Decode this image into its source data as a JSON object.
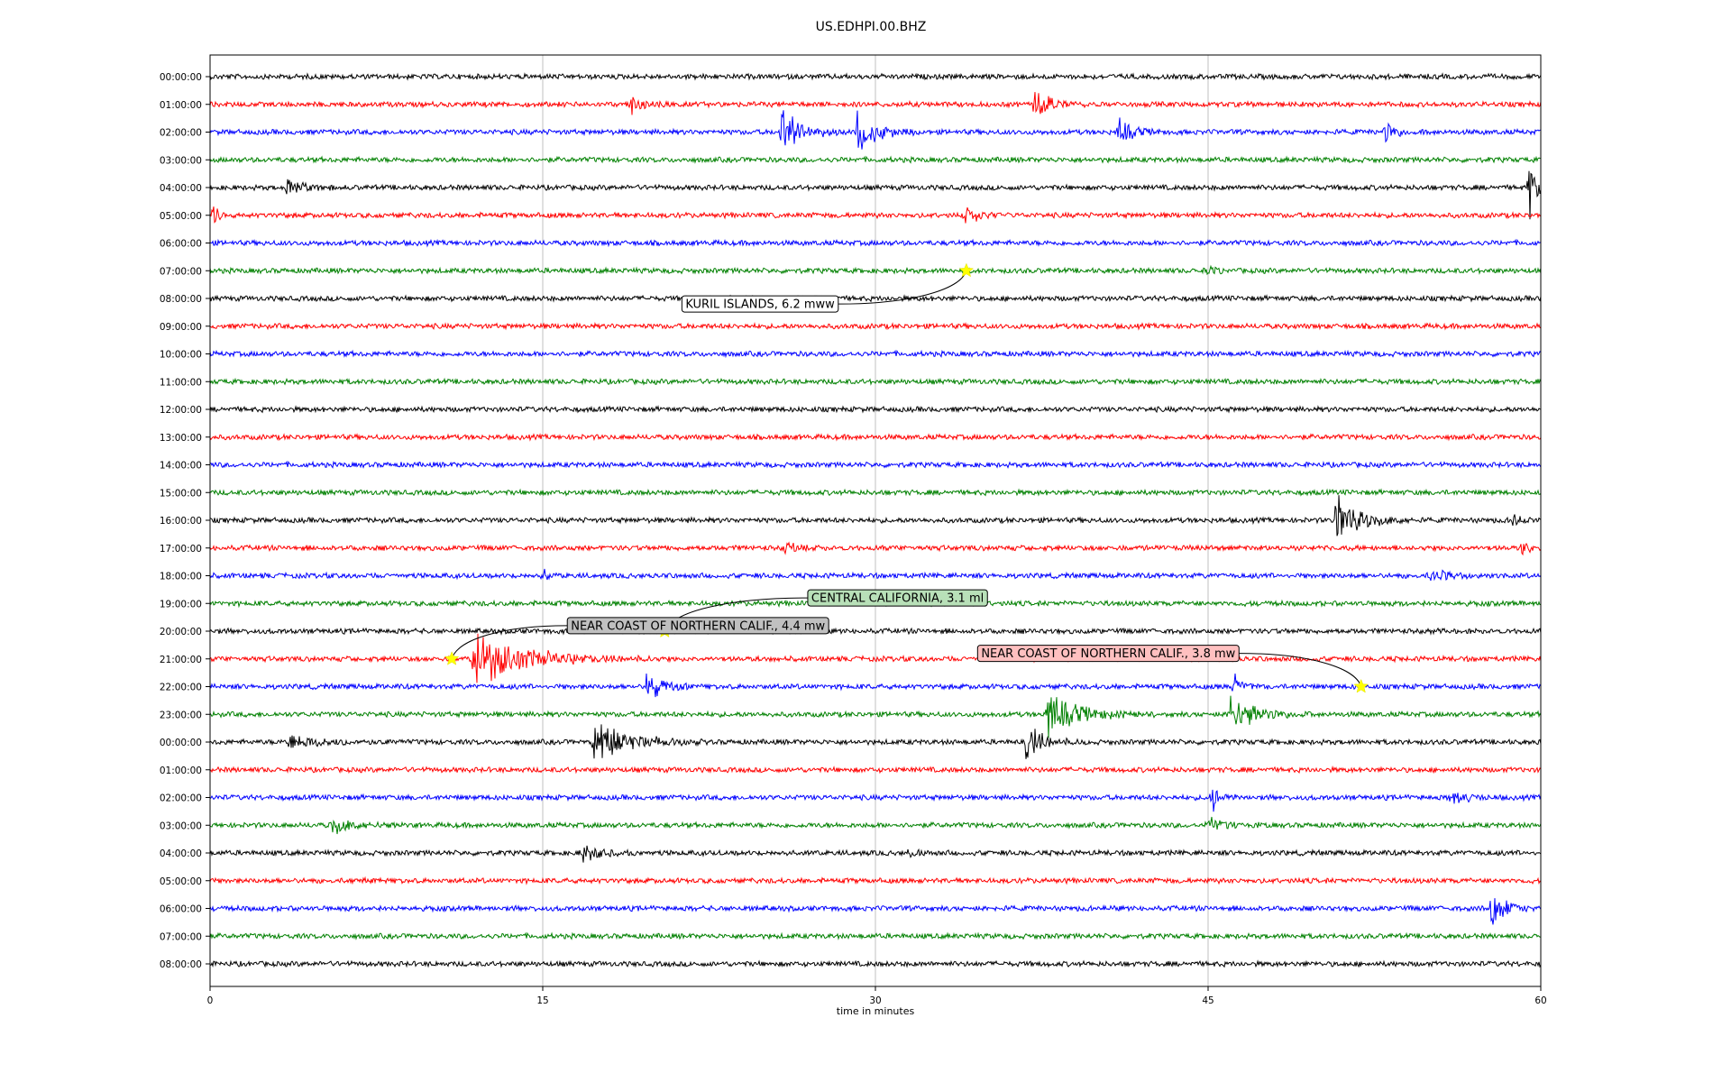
{
  "chart_data": {
    "type": "line",
    "title": "US.EDHPI.00.BHZ",
    "xlabel": "time in minutes",
    "ylabel": "",
    "xlim": [
      0,
      60
    ],
    "xticks": [
      "0",
      "15",
      "30",
      "45",
      "60"
    ],
    "xtick_values": [
      0,
      15,
      30,
      45,
      60
    ],
    "grid": "vertical lines at x ticks",
    "rows": [
      "00:00:00",
      "01:00:00",
      "02:00:00",
      "03:00:00",
      "04:00:00",
      "05:00:00",
      "06:00:00",
      "07:00:00",
      "08:00:00",
      "09:00:00",
      "10:00:00",
      "11:00:00",
      "12:00:00",
      "13:00:00",
      "14:00:00",
      "15:00:00",
      "16:00:00",
      "17:00:00",
      "18:00:00",
      "19:00:00",
      "20:00:00",
      "21:00:00",
      "22:00:00",
      "23:00:00",
      "00:00:00",
      "01:00:00",
      "02:00:00",
      "03:00:00",
      "04:00:00",
      "05:00:00",
      "06:00:00",
      "07:00:00",
      "08:00:00"
    ],
    "row_colors": [
      "#000000",
      "#ff0000",
      "#0000ff",
      "#008000"
    ],
    "bursts": [
      {
        "row": 1,
        "t": 19.0,
        "amp": 0.7,
        "dur": 1.0
      },
      {
        "row": 1,
        "t": 37.2,
        "amp": 1.0,
        "dur": 1.5
      },
      {
        "row": 2,
        "t": 25.8,
        "amp": 2.4,
        "dur": 1.5
      },
      {
        "row": 2,
        "t": 29.2,
        "amp": 1.8,
        "dur": 1.6
      },
      {
        "row": 2,
        "t": 41.0,
        "amp": 1.0,
        "dur": 1.2
      },
      {
        "row": 2,
        "t": 53.0,
        "amp": 0.9,
        "dur": 0.8
      },
      {
        "row": 4,
        "t": 3.5,
        "amp": 0.6,
        "dur": 1.5
      },
      {
        "row": 4,
        "t": 59.5,
        "amp": 2.0,
        "dur": 0.8
      },
      {
        "row": 5,
        "t": 0.2,
        "amp": 1.2,
        "dur": 0.3
      },
      {
        "row": 5,
        "t": 34.0,
        "amp": 0.8,
        "dur": 1.2
      },
      {
        "row": 7,
        "t": 45.0,
        "amp": 0.4,
        "dur": 0.5
      },
      {
        "row": 16,
        "t": 50.8,
        "amp": 2.0,
        "dur": 2.0
      },
      {
        "row": 16,
        "t": 58.8,
        "amp": 0.5,
        "dur": 0.5
      },
      {
        "row": 17,
        "t": 26.0,
        "amp": 0.5,
        "dur": 0.8
      },
      {
        "row": 17,
        "t": 59.2,
        "amp": 0.6,
        "dur": 0.6
      },
      {
        "row": 18,
        "t": 15.0,
        "amp": 0.5,
        "dur": 0.6
      },
      {
        "row": 18,
        "t": 55.0,
        "amp": 0.4,
        "dur": 2.0
      },
      {
        "row": 21,
        "t": 11.9,
        "amp": 2.2,
        "dur": 4.5
      },
      {
        "row": 22,
        "t": 19.7,
        "amp": 1.2,
        "dur": 1.4
      },
      {
        "row": 22,
        "t": 46.2,
        "amp": 0.8,
        "dur": 0.8
      },
      {
        "row": 23,
        "t": 37.8,
        "amp": 1.6,
        "dur": 2.8
      },
      {
        "row": 23,
        "t": 46.0,
        "amp": 1.8,
        "dur": 2.0
      },
      {
        "row": 24,
        "t": 17.3,
        "amp": 1.9,
        "dur": 2.8
      },
      {
        "row": 24,
        "t": 36.8,
        "amp": 1.6,
        "dur": 1.4
      },
      {
        "row": 24,
        "t": 3.5,
        "amp": 0.5,
        "dur": 3.0
      },
      {
        "row": 26,
        "t": 45.2,
        "amp": 1.0,
        "dur": 0.8
      },
      {
        "row": 26,
        "t": 56.0,
        "amp": 0.6,
        "dur": 1.2
      },
      {
        "row": 27,
        "t": 5.5,
        "amp": 0.6,
        "dur": 2.0
      },
      {
        "row": 27,
        "t": 45.0,
        "amp": 0.6,
        "dur": 1.5
      },
      {
        "row": 28,
        "t": 16.8,
        "amp": 0.7,
        "dur": 1.6
      },
      {
        "row": 28,
        "t": 31.5,
        "amp": 0.4,
        "dur": 0.6
      },
      {
        "row": 30,
        "t": 57.8,
        "amp": 1.6,
        "dur": 1.2
      }
    ],
    "events": [
      {
        "label": "KURIL ISLANDS, 6.2 mww",
        "row": 7,
        "t": 34.1,
        "label_row": 8.2,
        "label_t": 24.8,
        "box_color": "#ffffff"
      },
      {
        "label": "CENTRAL CALIFORNIA, 3.1 ml",
        "row": 20,
        "t": 20.5,
        "label_row": 18.8,
        "label_t": 31.0,
        "box_color": "#b8e0b8"
      },
      {
        "label": "NEAR COAST OF NORTHERN CALIF., 4.4 mw",
        "row": 21,
        "t": 10.9,
        "label_row": 19.8,
        "label_t": 22.0,
        "box_color": "#c0c0c0"
      },
      {
        "label": "NEAR COAST OF NORTHERN CALIF., 3.8 mw",
        "row": 22,
        "t": 51.9,
        "label_row": 20.8,
        "label_t": 40.5,
        "box_color": "#ffc0c0"
      }
    ]
  }
}
